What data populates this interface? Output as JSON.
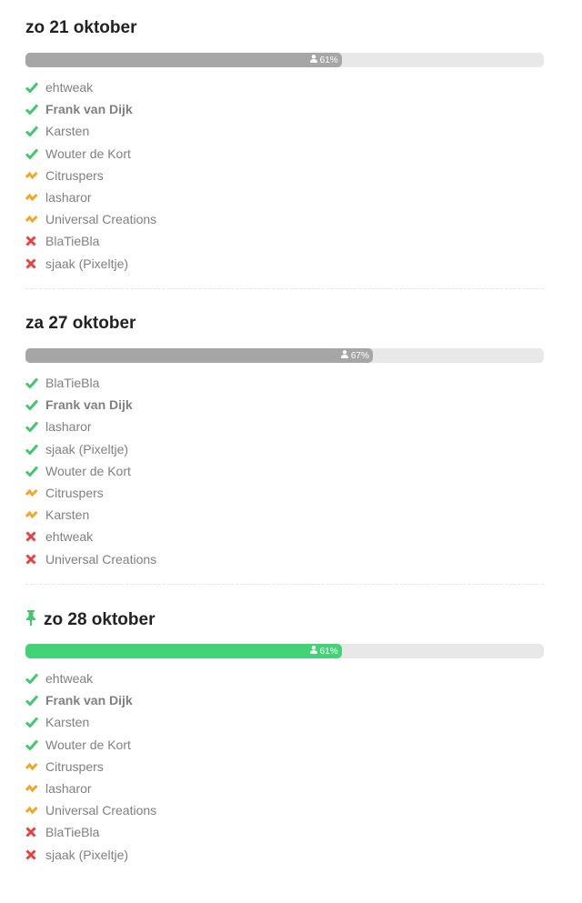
{
  "colors": {
    "yes": "#41c86b",
    "maybe": "#f5a623",
    "no": "#e8413c",
    "bar_default": "#a6a6a6",
    "bar_pinned": "#44d276",
    "bar_track": "#e8e8e8"
  },
  "dates": [
    {
      "title": "zo 21 oktober",
      "pinned": false,
      "percent": 61,
      "percent_label": "61%",
      "participants": [
        {
          "name": "ehtweak",
          "status": "yes"
        },
        {
          "name": "Frank van Dijk",
          "status": "yes",
          "bold": true
        },
        {
          "name": "Karsten",
          "status": "yes"
        },
        {
          "name": "Wouter de Kort",
          "status": "yes"
        },
        {
          "name": "Citruspers",
          "status": "maybe"
        },
        {
          "name": "lasharor",
          "status": "maybe"
        },
        {
          "name": "Universal Creations",
          "status": "maybe"
        },
        {
          "name": "BlaTieBla",
          "status": "no"
        },
        {
          "name": "sjaak (Pixeltje)",
          "status": "no"
        }
      ]
    },
    {
      "title": "za 27 oktober",
      "pinned": false,
      "percent": 67,
      "percent_label": "67%",
      "participants": [
        {
          "name": "BlaTieBla",
          "status": "yes"
        },
        {
          "name": "Frank van Dijk",
          "status": "yes",
          "bold": true
        },
        {
          "name": "lasharor",
          "status": "yes"
        },
        {
          "name": "sjaak (Pixeltje)",
          "status": "yes"
        },
        {
          "name": "Wouter de Kort",
          "status": "yes"
        },
        {
          "name": "Citruspers",
          "status": "maybe"
        },
        {
          "name": "Karsten",
          "status": "maybe"
        },
        {
          "name": "ehtweak",
          "status": "no"
        },
        {
          "name": "Universal Creations",
          "status": "no"
        }
      ]
    },
    {
      "title": "zo 28 oktober",
      "pinned": true,
      "percent": 61,
      "percent_label": "61%",
      "participants": [
        {
          "name": "ehtweak",
          "status": "yes"
        },
        {
          "name": "Frank van Dijk",
          "status": "yes",
          "bold": true
        },
        {
          "name": "Karsten",
          "status": "yes"
        },
        {
          "name": "Wouter de Kort",
          "status": "yes"
        },
        {
          "name": "Citruspers",
          "status": "maybe"
        },
        {
          "name": "lasharor",
          "status": "maybe"
        },
        {
          "name": "Universal Creations",
          "status": "maybe"
        },
        {
          "name": "BlaTieBla",
          "status": "no"
        },
        {
          "name": "sjaak (Pixeltje)",
          "status": "no"
        }
      ]
    }
  ]
}
